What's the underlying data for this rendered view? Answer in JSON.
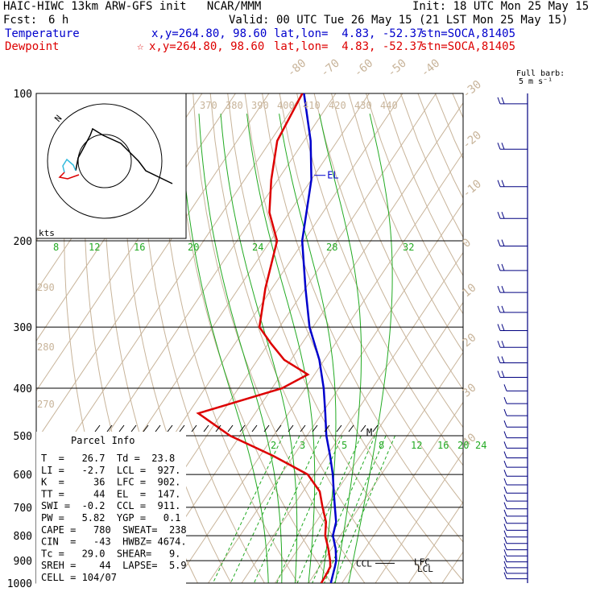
{
  "header": {
    "model": "HAIC-HIWC 13km ARW-GFS init   NCAR/MMM",
    "init": "Init: 18 UTC Mon 25 May 15",
    "fcst_label": "Fcst:",
    "fcst_value": "6 h",
    "valid": "Valid: 00 UTC Tue 26 May 15 (21 LST Mon 25 May 15)",
    "temp_label": "Temperature",
    "temp_xy": "x,y=264.80, 98.60",
    "temp_latlon": "lat,lon=  4.83, -52.37",
    "temp_stn": "stn=SOCA,81405",
    "dew_label": "Dewpoint",
    "dew_star": "☆",
    "dew_xy": "x,y=264.80, 98.60",
    "dew_latlon": "lat,lon=  4.83, -52.37",
    "dew_stn": "stn=SOCA,81405",
    "barb_legend_1": "Full barb:",
    "barb_legend_2": "5 m s⁻¹"
  },
  "colors": {
    "temperature": "#0000cc",
    "dewpoint": "#dd0000",
    "isotherm": "#c8b49a",
    "mixing_ratio": "#22aa22",
    "barb": "#000080"
  },
  "chart_data": {
    "type": "line",
    "subtype": "skew-T log-p sounding",
    "pressure_levels": [
      "100",
      "200",
      "300",
      "400",
      "500",
      "600",
      "700",
      "800",
      "900",
      "1000"
    ],
    "isotherm_labels": [
      "-80",
      "-70",
      "-60",
      "-50",
      "-40",
      "-30",
      "-20",
      "-10",
      "0",
      "10",
      "20",
      "30",
      "40"
    ],
    "theta_labels_top": [
      "370",
      "380",
      "390",
      "400",
      "410",
      "420",
      "430",
      "440"
    ],
    "theta_labels_left": [
      "290",
      "280",
      "270"
    ],
    "theta_e_labels": [
      "8",
      "12",
      "16",
      "20",
      "24",
      "28",
      "32"
    ],
    "mixing_ratio_labels": [
      "2",
      "3",
      "5",
      "8",
      "12",
      "16",
      "20",
      "24"
    ],
    "series": [
      {
        "name": "Temperature",
        "points": [
          [
            100,
            -79.5
          ],
          [
            125,
            -68
          ],
          [
            150,
            -60
          ],
          [
            200,
            -50.5
          ],
          [
            250,
            -40
          ],
          [
            300,
            -31
          ],
          [
            350,
            -21.5
          ],
          [
            400,
            -14.5
          ],
          [
            450,
            -9
          ],
          [
            500,
            -4.2
          ],
          [
            550,
            1
          ],
          [
            600,
            5.5
          ],
          [
            650,
            9.2
          ],
          [
            700,
            12.7
          ],
          [
            750,
            16
          ],
          [
            800,
            17.8
          ],
          [
            850,
            21.2
          ],
          [
            900,
            23.8
          ],
          [
            925,
            24.6
          ],
          [
            950,
            25.3
          ],
          [
            975,
            26
          ],
          [
            1000,
            26.7
          ]
        ]
      },
      {
        "name": "Dewpoint",
        "points": [
          [
            100,
            -80
          ],
          [
            125,
            -78
          ],
          [
            150,
            -72
          ],
          [
            175,
            -66
          ],
          [
            200,
            -58
          ],
          [
            250,
            -52
          ],
          [
            300,
            -46
          ],
          [
            325,
            -39
          ],
          [
            350,
            -32
          ],
          [
            375,
            -22
          ],
          [
            400,
            -27
          ],
          [
            450,
            -47
          ],
          [
            500,
            -33
          ],
          [
            550,
            -16
          ],
          [
            600,
            -2
          ],
          [
            650,
            5
          ],
          [
            700,
            9
          ],
          [
            750,
            13
          ],
          [
            800,
            15.5
          ],
          [
            850,
            19
          ],
          [
            900,
            22
          ],
          [
            925,
            23.2
          ],
          [
            950,
            23.5
          ],
          [
            975,
            23.7
          ],
          [
            1000,
            23.8
          ]
        ]
      }
    ],
    "levels": {
      "EL": "EL",
      "CCL": "CCL",
      "LFC": "LFC",
      "LCL": "LCL",
      "M": "M"
    },
    "hodograph": {
      "units": "kts",
      "north_label": "N"
    }
  },
  "parcel_info": {
    "title": "Parcel Info",
    "lines": [
      "T  =   26.7  Td =  23.8",
      "LI =   -2.7  LCL =  927.",
      "K  =     36  LFC =  902.",
      "TT =     44  EL  =  147.",
      "SWI =  -0.2  CCL =  911.",
      "PW =   5.82  YGP =   0.1",
      "CAPE =   780  SWEAT=  238",
      "CIN  =   -43  HWBZ= 4674.",
      "Tc =   29.0  SHEAR=   9.",
      "SREH =    44  LAPSE=  5.9",
      "CELL = 104/07"
    ]
  }
}
